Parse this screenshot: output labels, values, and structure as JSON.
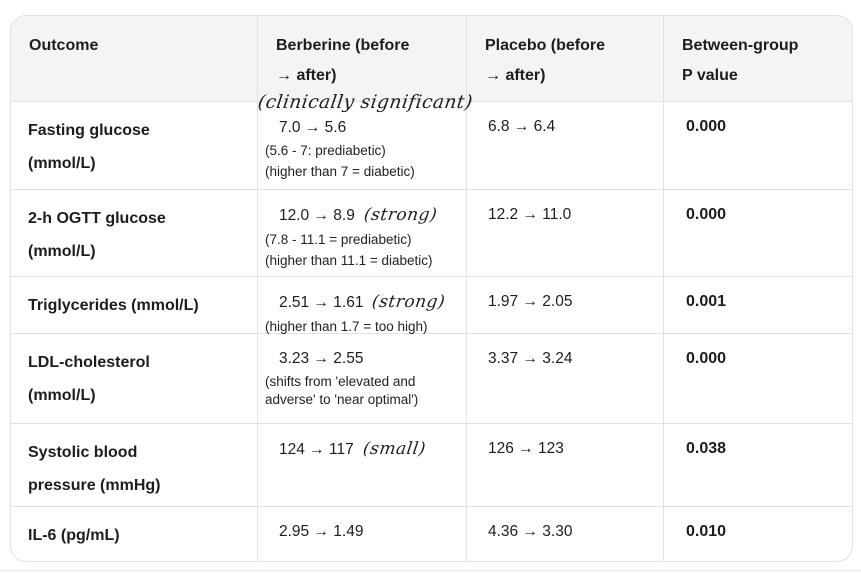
{
  "table": {
    "headers": {
      "outcome": "Outcome",
      "berberine": "Berberine (before\n→ after)",
      "placebo": "Placebo (before\n→ after)",
      "p_value": "Between-group\nP value"
    },
    "berberine_header_annotation": "(clinically significant)",
    "rows": [
      {
        "outcome": "Fasting glucose\n(mmol/L)",
        "berberine": "7.0 → 5.6",
        "berberine_note_1": "(5.6 - 7: prediabetic)",
        "berberine_note_2": "(higher than 7 = diabetic)",
        "placebo": "6.8 → 6.4",
        "p_value": "0.000"
      },
      {
        "outcome": "2-h OGTT glucose\n(mmol/L)",
        "berberine": "12.0 → 8.9",
        "berberine_hand": "(strong)",
        "berberine_note_1": "(7.8 - 11.1 = prediabetic)",
        "berberine_note_2": "(higher than 11.1 = diabetic)",
        "placebo": "12.2 → 11.0",
        "p_value": "0.000"
      },
      {
        "outcome": "Triglycerides (mmol/L)",
        "berberine": "2.51 → 1.61",
        "berberine_hand": "(strong)",
        "berberine_note_1": "(higher than 1.7 = too high)",
        "placebo": "1.97 → 2.05",
        "p_value": "0.001"
      },
      {
        "outcome": "LDL-cholesterol\n(mmol/L)",
        "berberine": "3.23 → 2.55",
        "berberine_note_1": "(shifts from 'elevated and\nadverse' to 'near optimal')",
        "placebo": "3.37 → 3.24",
        "p_value": "0.000"
      },
      {
        "outcome": "Systolic blood\npressure (mmHg)",
        "berberine": "124 → 117",
        "berberine_hand": "(small)",
        "placebo": "126 → 123",
        "p_value": "0.038"
      },
      {
        "outcome": "IL-6 (pg/mL)",
        "berberine": "2.95 → 1.49",
        "placebo": "4.36 → 3.30",
        "p_value": "0.010"
      }
    ],
    "colors": {
      "header_bg": "#f4f4f5",
      "border": "#e2e2e4",
      "text": "#1d1d1f"
    }
  },
  "chart_data": {
    "type": "table",
    "columns": [
      "Outcome",
      "Berberine (before → after)",
      "Placebo (before → after)",
      "Between-group P value"
    ],
    "rows": [
      [
        "Fasting glucose (mmol/L)",
        "7.0 → 5.6",
        "6.8 → 6.4",
        "0.000"
      ],
      [
        "2-h OGTT glucose (mmol/L)",
        "12.0 → 8.9",
        "12.2 → 11.0",
        "0.000"
      ],
      [
        "Triglycerides (mmol/L)",
        "2.51 → 1.61",
        "1.97 → 2.05",
        "0.001"
      ],
      [
        "LDL-cholesterol (mmol/L)",
        "3.23 → 2.55",
        "3.37 → 3.24",
        "0.000"
      ],
      [
        "Systolic blood pressure (mmHg)",
        "124 → 117",
        "126 → 123",
        "0.038"
      ],
      [
        "IL-6 (pg/mL)",
        "2.95 → 1.49",
        "4.36 → 3.30",
        "0.010"
      ]
    ],
    "handwritten_annotations": {
      "berberine_column": "(clinically significant)",
      "row_effects": [
        "",
        "(strong)",
        "(strong)",
        "",
        "(small)",
        ""
      ]
    },
    "reference_notes": [
      "(5.6 - 7: prediabetic)",
      "(higher than 7 = diabetic)",
      "(7.8 - 11.1 = prediabetic)",
      "(higher than 11.1 = diabetic)",
      "(higher than 1.7 = too high)",
      "(shifts from 'elevated and adverse' to 'near optimal')"
    ]
  }
}
